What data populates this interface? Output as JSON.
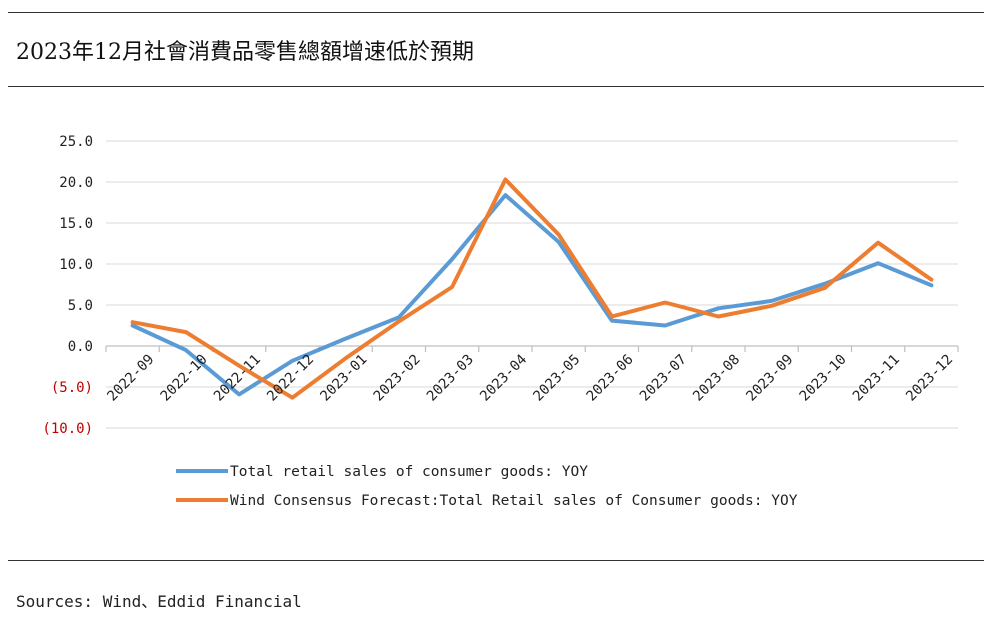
{
  "title": "2023年12月社會消費品零售總額增速低於預期",
  "source": "Sources: Wind、Eddid Financial",
  "chart_data": {
    "type": "line",
    "categories": [
      "2022-09",
      "2022-10",
      "2022-11",
      "2022-12",
      "2023-01",
      "2023-02",
      "2023-03",
      "2023-04",
      "2023-05",
      "2023-06",
      "2023-07",
      "2023-08",
      "2023-09",
      "2023-10",
      "2023-11",
      "2023-12"
    ],
    "series": [
      {
        "name": "Total retail sales of consumer goods: YOY",
        "color": "#5b9bd5",
        "values": [
          2.5,
          -0.5,
          -5.9,
          -1.8,
          0.9,
          3.5,
          10.6,
          18.4,
          12.7,
          3.1,
          2.5,
          4.6,
          5.5,
          7.6,
          10.1,
          7.4
        ]
      },
      {
        "name": "Wind Consensus Forecast:Total Retail sales of Consumer goods: YOY",
        "color": "#ed7d31",
        "values": [
          2.9,
          1.7,
          -2.4,
          -6.3,
          -1.5,
          3.0,
          7.2,
          20.3,
          13.6,
          3.6,
          5.3,
          3.6,
          4.9,
          7.1,
          12.6,
          8.1
        ]
      }
    ],
    "ylim": [
      -10,
      25
    ],
    "yticks": [
      {
        "value": 25,
        "label": "25.0"
      },
      {
        "value": 20,
        "label": "20.0"
      },
      {
        "value": 15,
        "label": "15.0"
      },
      {
        "value": 10,
        "label": "10.0"
      },
      {
        "value": 5,
        "label": "5.0"
      },
      {
        "value": 0,
        "label": "0.0"
      },
      {
        "value": -5,
        "label": "(5.0)"
      },
      {
        "value": -10,
        "label": "(10.0)"
      }
    ],
    "negative_tick_color": "#c00000",
    "grid": true,
    "legend_position": "bottom"
  }
}
